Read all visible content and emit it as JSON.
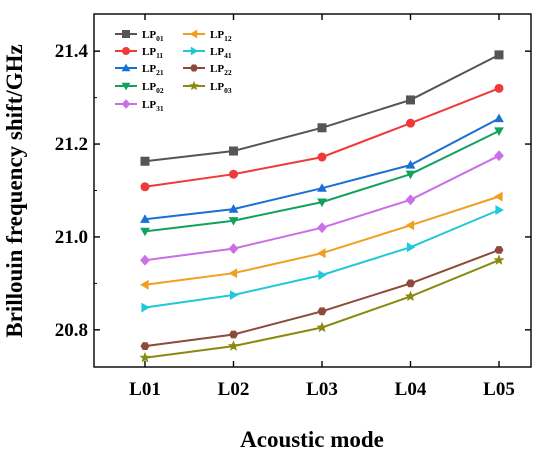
{
  "chart_data": {
    "type": "line",
    "xlabel": "Acoustic mode",
    "ylabel": "Brillouin frequency shift/GHz",
    "categories": [
      "L01",
      "L02",
      "L03",
      "L04",
      "L05"
    ],
    "ylim": [
      20.72,
      21.48
    ],
    "yticks": [
      "20.8",
      "21.0",
      "21.2",
      "21.4"
    ],
    "yticks_num": [
      20.8,
      21.0,
      21.2,
      21.4
    ],
    "grid": false,
    "legend_position": "top-left",
    "series": [
      {
        "base": "LP",
        "sub": "01",
        "color": "#555555",
        "marker": "square",
        "values": [
          21.163,
          21.185,
          21.235,
          21.295,
          21.392
        ]
      },
      {
        "base": "LP",
        "sub": "11",
        "color": "#f03a3a",
        "marker": "circle",
        "values": [
          21.108,
          21.135,
          21.172,
          21.245,
          21.32
        ]
      },
      {
        "base": "LP",
        "sub": "21",
        "color": "#1a6fd6",
        "marker": "triangle-up",
        "values": [
          21.038,
          21.06,
          21.105,
          21.155,
          21.255
        ]
      },
      {
        "base": "LP",
        "sub": "02",
        "color": "#12a25e",
        "marker": "triangle-down",
        "values": [
          21.012,
          21.035,
          21.075,
          21.135,
          21.228
        ]
      },
      {
        "base": "LP",
        "sub": "31",
        "color": "#cc6ee6",
        "marker": "diamond",
        "values": [
          20.95,
          20.975,
          21.02,
          21.08,
          21.175
        ]
      },
      {
        "base": "LP",
        "sub": "12",
        "color": "#f0a020",
        "marker": "triangle-left",
        "values": [
          20.897,
          20.922,
          20.965,
          21.025,
          21.087
        ]
      },
      {
        "base": "LP",
        "sub": "41",
        "color": "#20c8d8",
        "marker": "triangle-right",
        "values": [
          20.848,
          20.875,
          20.918,
          20.978,
          21.058
        ]
      },
      {
        "base": "LP",
        "sub": "22",
        "color": "#8b4a3a",
        "marker": "hexagon",
        "values": [
          20.765,
          20.79,
          20.84,
          20.9,
          20.972
        ]
      },
      {
        "base": "LP",
        "sub": "03",
        "color": "#8a8a12",
        "marker": "star",
        "values": [
          20.74,
          20.765,
          20.805,
          20.872,
          20.95
        ]
      }
    ]
  }
}
